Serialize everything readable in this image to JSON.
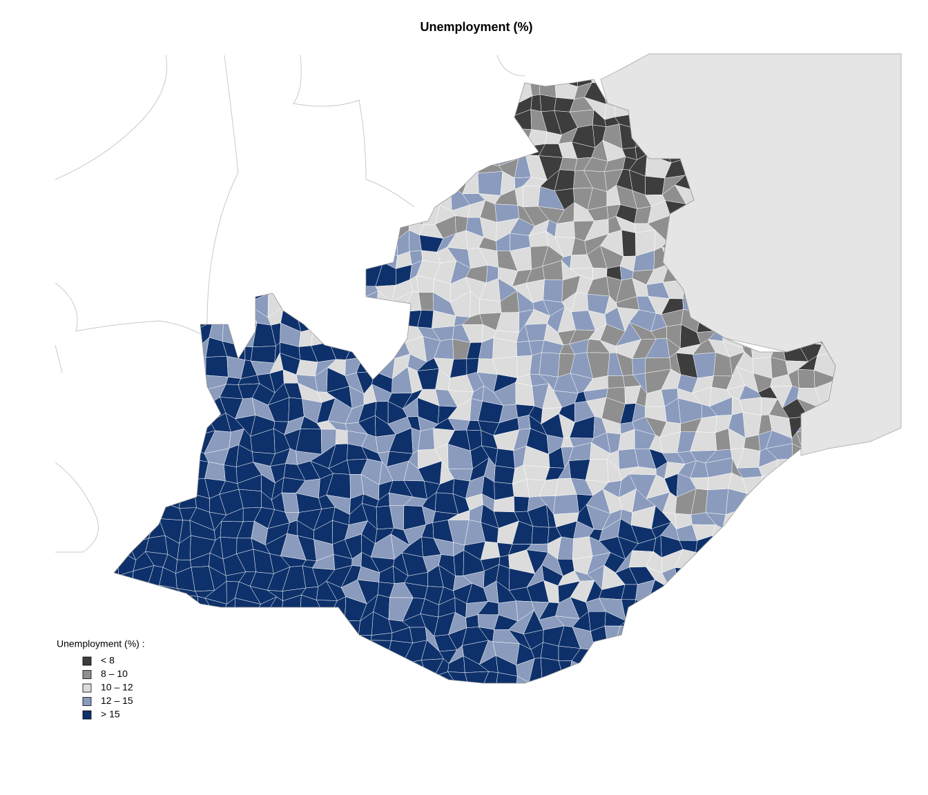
{
  "title": "Unemployment (%)",
  "legend": {
    "title": "Unemployment (%)  :",
    "items": [
      {
        "label": "< 8",
        "color": "#3d3d3d"
      },
      {
        "label": "8 – 10",
        "color": "#8f8f8f"
      },
      {
        "label": "10 – 12",
        "color": "#dcdcdc"
      },
      {
        "label": "12 – 15",
        "color": "#8a9bbd"
      },
      {
        "label": "> 15",
        "color": "#0e316b"
      }
    ]
  }
}
